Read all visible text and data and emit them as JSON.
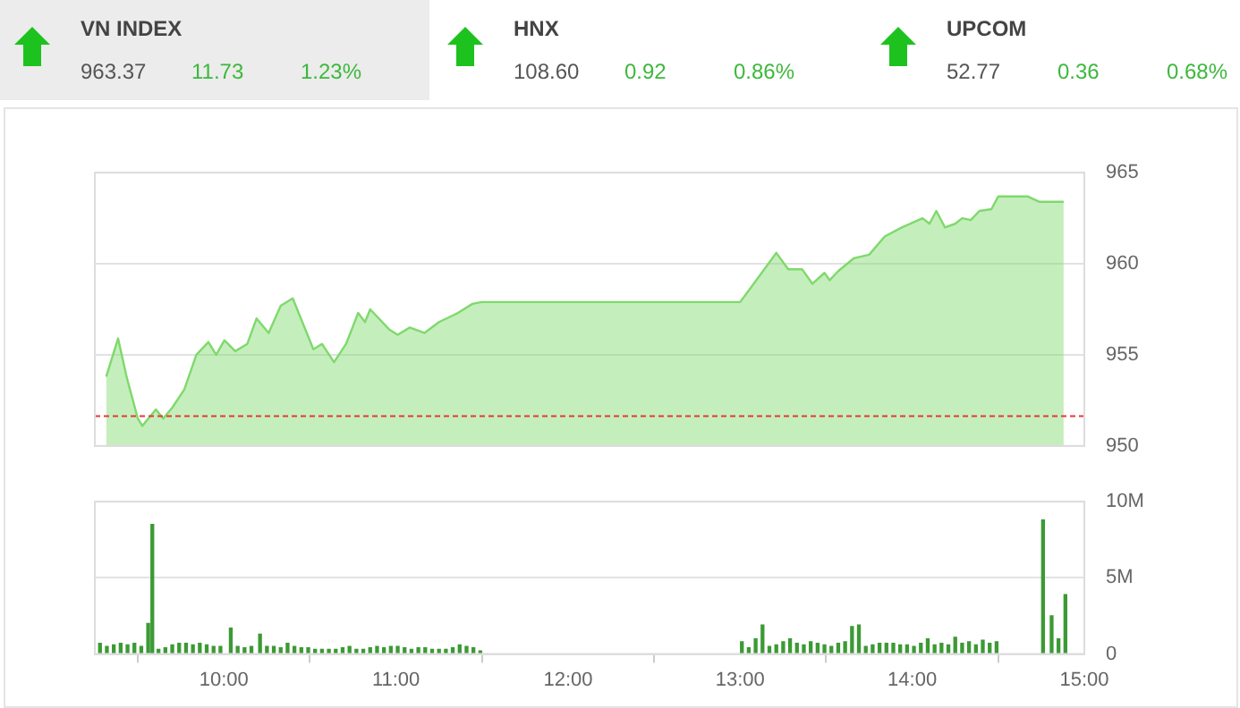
{
  "chart_data": [
    {
      "type": "other",
      "annotations": [
        "VN INDEX",
        "963.37",
        "11.73",
        "1.23%",
        "HNX",
        "108.60",
        "0.92",
        "0.86%",
        "UPCOM",
        "52.77",
        "0.36",
        "0.68%"
      ]
    },
    {
      "type": "area",
      "x": [
        9.316,
        9.385,
        9.437,
        9.5,
        9.526,
        9.605,
        9.647,
        9.7,
        9.77,
        9.84,
        9.91,
        9.955,
        10.003,
        10.066,
        10.136,
        10.19,
        10.26,
        10.33,
        10.4,
        10.52,
        10.57,
        10.64,
        10.71,
        10.78,
        10.82,
        10.85,
        10.96,
        11.01,
        11.08,
        11.165,
        11.25,
        11.36,
        11.445,
        11.497,
        13.0,
        13.086,
        13.21,
        13.28,
        13.36,
        13.42,
        13.49,
        13.52,
        13.57,
        13.66,
        13.75,
        13.84,
        13.94,
        14.06,
        14.1,
        14.14,
        14.19,
        14.25,
        14.29,
        14.34,
        14.39,
        14.46,
        14.5,
        14.67,
        14.74,
        14.88
      ],
      "series": [
        {
          "color": "#7fd96c",
          "values": [
            953.8,
            955.9,
            953.7,
            951.5,
            951.1,
            952,
            951.5,
            952.1,
            953.1,
            955,
            955.7,
            955,
            955.8,
            955.2,
            955.6,
            957,
            956.2,
            957.7,
            958.1,
            955.3,
            955.6,
            954.6,
            955.6,
            957.3,
            956.8,
            957.5,
            956.4,
            956.1,
            956.5,
            956.2,
            956.8,
            957.3,
            957.8,
            957.9,
            957.9,
            959,
            960.6,
            959.7,
            959.7,
            958.9,
            959.5,
            959.1,
            959.6,
            960.3,
            960.5,
            961.5,
            962,
            962.5,
            962.2,
            962.9,
            962,
            962.2,
            962.5,
            962.4,
            962.9,
            963,
            963.7,
            963.7,
            963.4,
            963.4
          ]
        }
      ],
      "xlim": [
        9.25,
        15
      ],
      "ylim": [
        950,
        965
      ],
      "yticks": [
        950,
        955,
        960,
        965
      ],
      "grid": "y",
      "legend": false,
      "tick_labels": "y",
      "ref_lines": [
        {
          "axis": "y",
          "value": 951.64,
          "color": "#e53935",
          "line_style": "dashed"
        }
      ]
    },
    {
      "type": "bar",
      "x": [
        9.28,
        9.32,
        9.36,
        9.4,
        9.44,
        9.48,
        9.52,
        9.56,
        9.584,
        9.62,
        9.66,
        9.7,
        9.74,
        9.78,
        9.82,
        9.86,
        9.9,
        9.94,
        9.98,
        10.04,
        10.08,
        10.12,
        10.16,
        10.21,
        10.25,
        10.29,
        10.33,
        10.37,
        10.41,
        10.45,
        10.49,
        10.53,
        10.57,
        10.61,
        10.65,
        10.69,
        10.73,
        10.77,
        10.81,
        10.85,
        10.89,
        10.93,
        10.97,
        11.01,
        11.05,
        11.09,
        11.13,
        11.17,
        11.21,
        11.25,
        11.29,
        11.33,
        11.37,
        11.41,
        11.45,
        11.49,
        13.01,
        13.05,
        13.09,
        13.13,
        13.17,
        13.21,
        13.25,
        13.29,
        13.33,
        13.37,
        13.41,
        13.45,
        13.49,
        13.53,
        13.57,
        13.61,
        13.65,
        13.69,
        13.73,
        13.77,
        13.81,
        13.85,
        13.89,
        13.93,
        13.97,
        14.01,
        14.05,
        14.09,
        14.13,
        14.17,
        14.21,
        14.25,
        14.29,
        14.33,
        14.37,
        14.41,
        14.45,
        14.49,
        14.76,
        14.81,
        14.85,
        14.89
      ],
      "series": [
        {
          "color": "#3c9a35",
          "values": [
            700000,
            500000,
            600000,
            700000,
            600000,
            700000,
            500000,
            2000000,
            8500000,
            300000,
            400000,
            600000,
            700000,
            700000,
            600000,
            700000,
            600000,
            500000,
            500000,
            1700000,
            500000,
            400000,
            500000,
            1300000,
            500000,
            500000,
            400000,
            700000,
            500000,
            400000,
            400000,
            300000,
            300000,
            300000,
            300000,
            400000,
            500000,
            300000,
            300000,
            400000,
            500000,
            400000,
            500000,
            500000,
            400000,
            300000,
            400000,
            400000,
            300000,
            300000,
            300000,
            400000,
            600000,
            500000,
            400000,
            200000,
            800000,
            400000,
            1000000,
            1900000,
            500000,
            600000,
            800000,
            1000000,
            700000,
            600000,
            800000,
            700000,
            600000,
            500000,
            700000,
            800000,
            1800000,
            1900000,
            500000,
            600000,
            700000,
            700000,
            700000,
            600000,
            600000,
            500000,
            700000,
            1000000,
            600000,
            700000,
            600000,
            1100000,
            700000,
            800000,
            600000,
            900000,
            700000,
            800000,
            8800000,
            2500000,
            1000000,
            3900000
          ]
        }
      ],
      "xlim": [
        9.25,
        15
      ],
      "xticks": [
        {
          "value": 10,
          "label": "10:00"
        },
        {
          "value": 11,
          "label": "11:00"
        },
        {
          "value": 12,
          "label": "12:00"
        },
        {
          "value": 13,
          "label": "13:00"
        },
        {
          "value": 14,
          "label": "14:00"
        },
        {
          "value": 15,
          "label": "15:00"
        }
      ],
      "ylim": [
        0,
        10000000
      ],
      "yticks": [
        0,
        {
          "value": 5000000,
          "label": "5M"
        },
        {
          "value": 10000000,
          "label": "10M"
        }
      ],
      "grid": "y",
      "legend": false
    }
  ]
}
